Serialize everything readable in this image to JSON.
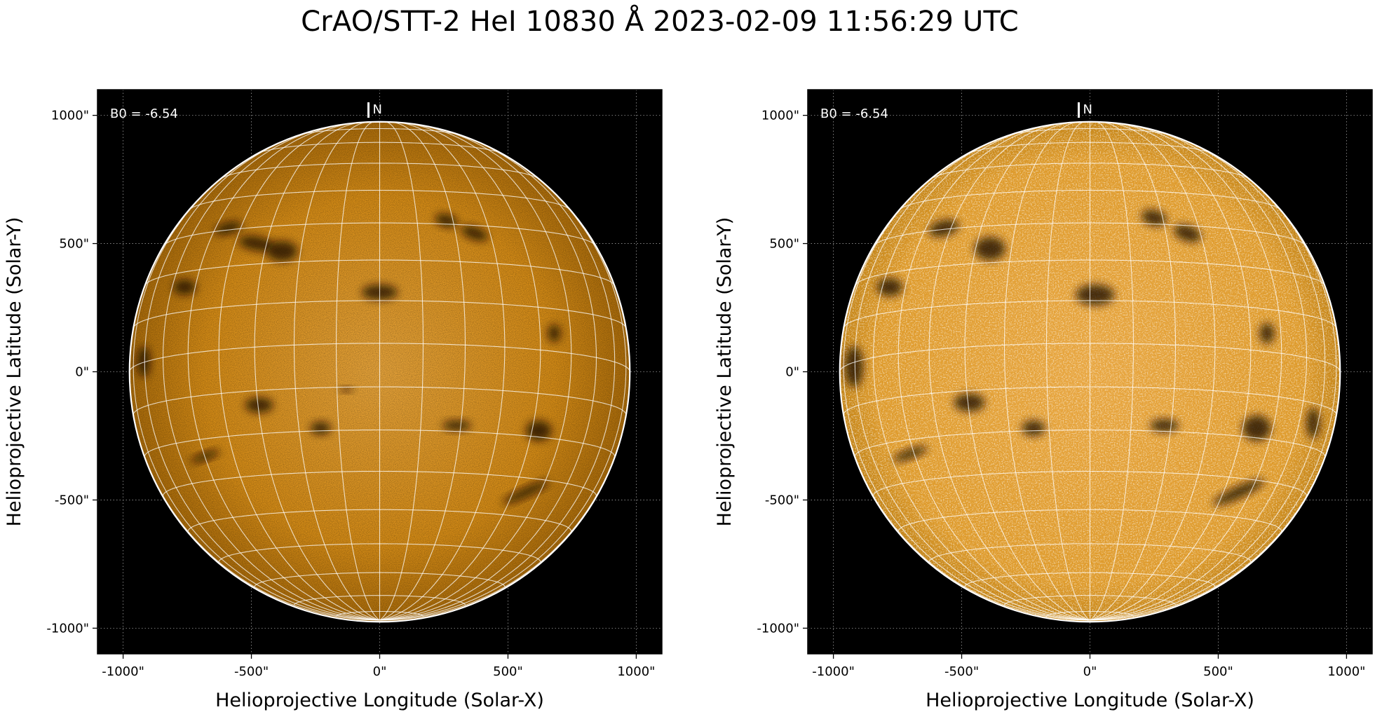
{
  "figure": {
    "title": "CrAO/STT-2 HeI 10830 Å 2023-02-09 11:56:29 UTC"
  },
  "colors": {
    "background": "#000000",
    "disk_left": "#d48b16",
    "disk_right": "#de9a2a",
    "limb": "#ffffff",
    "grid": "#ffffff"
  },
  "axes": {
    "xlabel": "Helioprojective Longitude (Solar-X)",
    "ylabel": "Helioprojective Latitude (Solar-Y)",
    "xticks": [
      -1000,
      -500,
      0,
      500,
      1000
    ],
    "yticks": [
      1000,
      500,
      0,
      -500,
      -1000
    ],
    "xtick_labels": [
      "-1000\"",
      "-500\"",
      "0\"",
      "500\"",
      "1000\""
    ],
    "ytick_labels": [
      "1000\"",
      "500\"",
      "0\"",
      "-500\"",
      "-1000\""
    ],
    "xlim": [
      -1100,
      1100
    ],
    "ylim": [
      -1100,
      1100
    ],
    "solar_radius_arcsec": 975,
    "b0_deg": -6.54
  },
  "panels": [
    {
      "name": "panel-left",
      "b0_text": "B0 = -6.54",
      "north_text": "N",
      "dark_features": [
        [
          -590,
          560,
          55,
          22,
          -15
        ],
        [
          -480,
          500,
          70,
          28,
          10
        ],
        [
          -380,
          470,
          60,
          40,
          0
        ],
        [
          -760,
          330,
          45,
          30,
          0
        ],
        [
          -920,
          40,
          25,
          60,
          0
        ],
        [
          260,
          590,
          45,
          25,
          15
        ],
        [
          370,
          540,
          55,
          25,
          20
        ],
        [
          0,
          310,
          70,
          30,
          0
        ],
        [
          680,
          150,
          25,
          35,
          0
        ],
        [
          -470,
          -130,
          55,
          30,
          0
        ],
        [
          -230,
          -220,
          40,
          25,
          0
        ],
        [
          300,
          -210,
          55,
          20,
          0
        ],
        [
          620,
          -230,
          50,
          40,
          0
        ],
        [
          570,
          -470,
          100,
          18,
          -25
        ],
        [
          -680,
          -330,
          60,
          15,
          -20
        ],
        [
          -130,
          -70,
          25,
          10,
          0
        ]
      ]
    },
    {
      "name": "panel-right",
      "b0_text": "B0 = -6.54",
      "north_text": "N",
      "dark_features": [
        [
          -570,
          560,
          60,
          30,
          -15
        ],
        [
          -390,
          480,
          60,
          45,
          0
        ],
        [
          -780,
          330,
          50,
          35,
          0
        ],
        [
          -920,
          20,
          35,
          80,
          0
        ],
        [
          250,
          600,
          50,
          30,
          15
        ],
        [
          380,
          540,
          55,
          30,
          20
        ],
        [
          20,
          300,
          75,
          40,
          0
        ],
        [
          690,
          150,
          28,
          40,
          0
        ],
        [
          -470,
          -120,
          60,
          35,
          0
        ],
        [
          -220,
          -220,
          45,
          30,
          0
        ],
        [
          290,
          -210,
          55,
          25,
          0
        ],
        [
          650,
          -220,
          55,
          50,
          0
        ],
        [
          580,
          -470,
          110,
          22,
          -25
        ],
        [
          -700,
          -320,
          70,
          18,
          -20
        ],
        [
          870,
          -200,
          25,
          60,
          0
        ]
      ]
    }
  ]
}
